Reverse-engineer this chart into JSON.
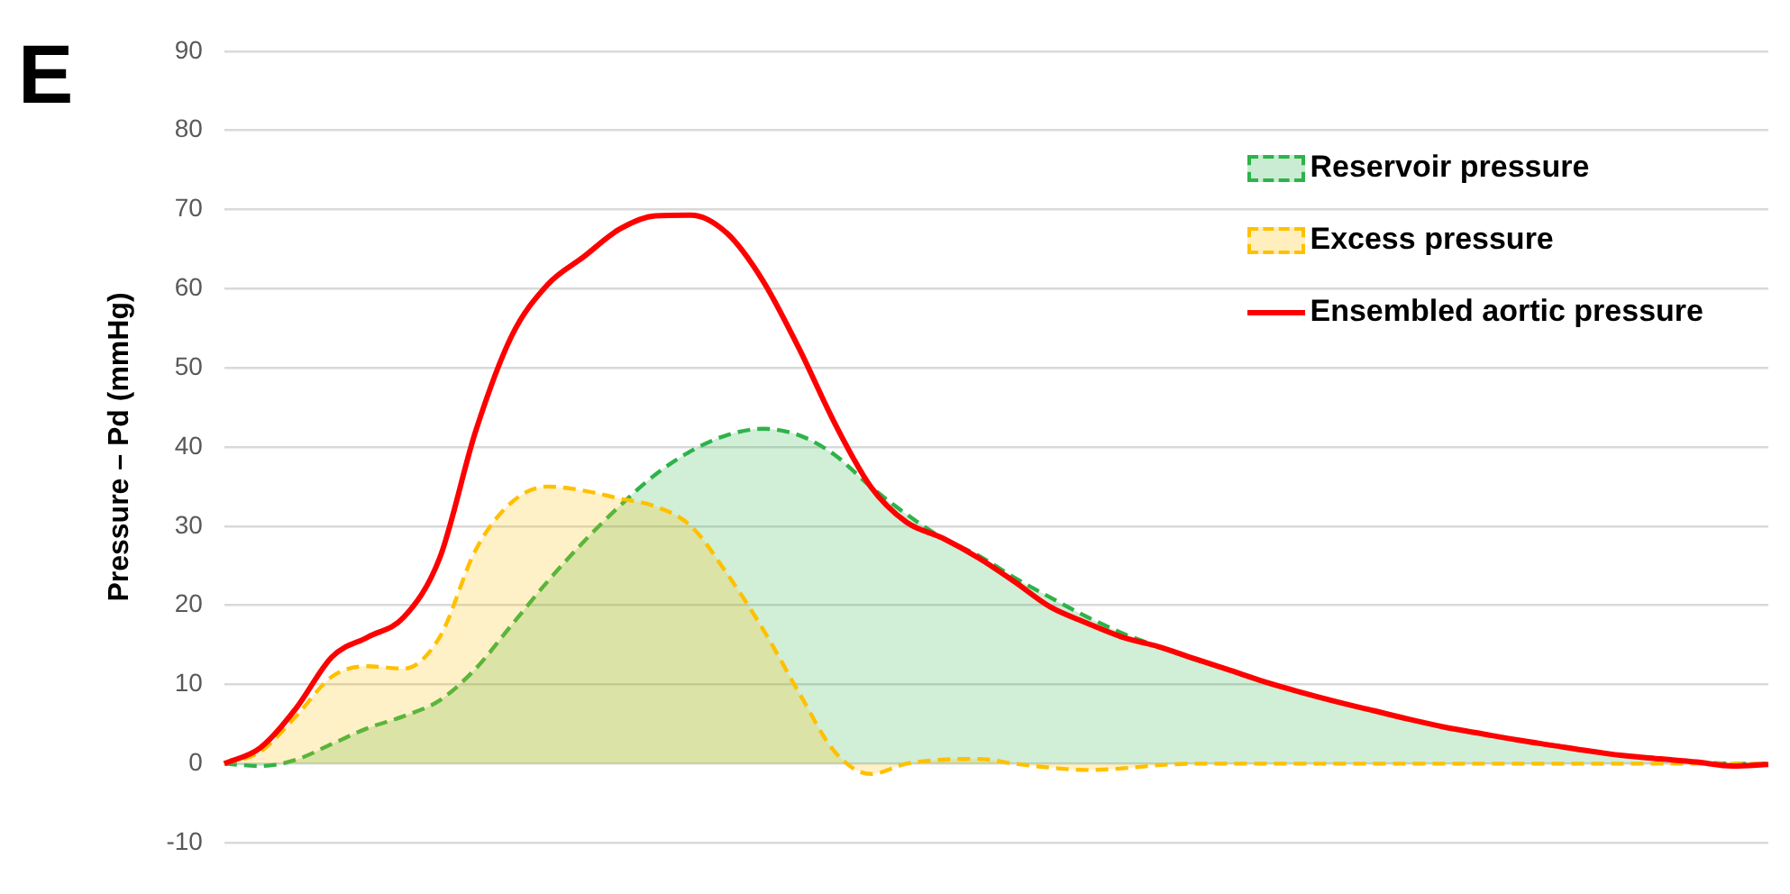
{
  "chart_data": {
    "type": "area",
    "annotations": [
      "E"
    ],
    "ylabel": "Pressure – Pd (mmHg)",
    "categories": [
      null,
      null,
      null,
      null,
      null,
      null,
      null,
      null,
      null,
      null,
      null,
      null,
      null,
      null,
      null,
      null,
      null,
      null,
      null,
      null,
      null,
      null,
      null,
      null,
      null,
      null,
      null,
      null,
      null,
      null,
      null,
      null,
      null,
      null,
      null,
      null,
      null,
      null,
      null,
      null,
      null,
      null,
      null,
      null
    ],
    "series": [
      {
        "name": "Reservoir pressure",
        "color": "#2db34a",
        "line_style": "dashed",
        "values": [
          0,
          -0.3,
          0.5,
          2.5,
          4.5,
          6,
          8,
          12,
          17.5,
          23,
          28,
          32.5,
          36.5,
          39.5,
          41.5,
          42.3,
          41.5,
          39,
          35,
          31.5,
          28.5,
          26.3,
          23.5,
          21,
          18.6,
          16.5,
          14.8,
          13.2,
          11.8,
          10.3,
          9,
          7.8,
          6.7,
          5.6,
          4.6,
          3.8,
          3,
          2.3,
          1.6,
          1,
          0.6,
          0.2,
          0,
          0
        ]
      },
      {
        "name": "Excess pressure",
        "color": "#ffc000",
        "line_style": "dashed",
        "values": [
          0,
          1.5,
          6,
          11,
          12.3,
          12,
          16,
          27,
          33,
          35,
          34.5,
          33.5,
          32.5,
          30,
          24,
          17,
          9,
          1.5,
          -1.3,
          0,
          0.5,
          0.6,
          0,
          -0.5,
          -0.8,
          -0.6,
          -0.2,
          0,
          0,
          0,
          0,
          0,
          0,
          0,
          0,
          0,
          0,
          0,
          0,
          0,
          0,
          0,
          0,
          0
        ]
      },
      {
        "name": "Ensembled aortic pressure",
        "type": "line",
        "color": "#ff0000",
        "line_style": "solid",
        "values": [
          0,
          2,
          7,
          13.5,
          16,
          18.5,
          26,
          42,
          54,
          60.5,
          64,
          67.5,
          69.2,
          69.3,
          67,
          61,
          52.5,
          43,
          35,
          30.5,
          28.5,
          26,
          23,
          19.8,
          17.8,
          16,
          14.8,
          13.3,
          11.8,
          10.3,
          9,
          7.8,
          6.7,
          5.6,
          4.6,
          3.8,
          3,
          2.3,
          1.6,
          1,
          0.6,
          0.2,
          -0.3,
          -0.1
        ]
      }
    ],
    "ylim": [
      -10,
      90
    ],
    "yticks": [
      -10,
      0,
      10,
      20,
      30,
      40,
      50,
      60,
      70,
      80,
      90
    ],
    "grid": "y",
    "legend": "top right",
    "marker": "none",
    "tick_labels": "y"
  }
}
